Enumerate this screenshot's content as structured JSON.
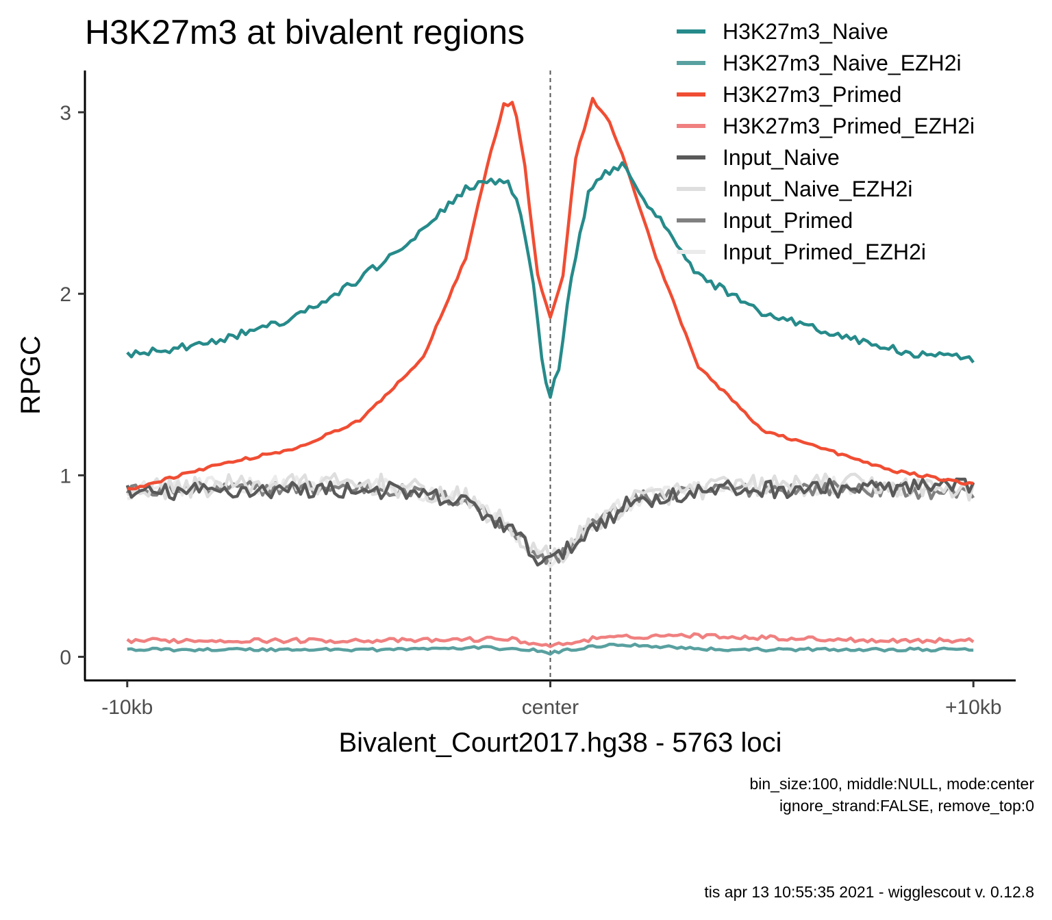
{
  "chart_data": {
    "type": "line",
    "title": "H3K27m3 at bivalent regions",
    "xlabel": "Bivalent_Court2017.hg38 - 5763 loci",
    "ylabel": "RPGC",
    "x_ticks": [
      {
        "value": -10,
        "label": "-10kb"
      },
      {
        "value": 0,
        "label": "center"
      },
      {
        "value": 10,
        "label": "+10kb"
      }
    ],
    "y_ticks": [
      0,
      1,
      2,
      3
    ],
    "xlim": [
      -11,
      11
    ],
    "ylim": [
      -0.13,
      3.23
    ],
    "x_unit": "kb",
    "grid": false,
    "center_line": true,
    "legend_position": "top-right",
    "captions": [
      "bin_size:100, middle:NULL, mode:center",
      "ignore_strand:FALSE, remove_top:0"
    ],
    "footer": "tis apr 13 10:55:35 2021 - wigglescout v. 0.12.8",
    "series": [
      {
        "name": "Input_Primed_EZH2i",
        "color": "#ebebeb",
        "noise": 0.05,
        "points": [
          [
            -10,
            0.92
          ],
          [
            -7,
            0.95
          ],
          [
            -4,
            0.94
          ],
          [
            -2,
            0.86
          ],
          [
            -1,
            0.72
          ],
          [
            -0.3,
            0.56
          ],
          [
            0,
            0.53
          ],
          [
            0.3,
            0.57
          ],
          [
            1,
            0.73
          ],
          [
            2,
            0.87
          ],
          [
            4,
            0.93
          ],
          [
            7,
            0.95
          ],
          [
            10,
            0.91
          ]
        ]
      },
      {
        "name": "Input_Primed",
        "color": "#808080",
        "noise": 0.04,
        "points": [
          [
            -10,
            0.91
          ],
          [
            -7,
            0.93
          ],
          [
            -4,
            0.93
          ],
          [
            -2,
            0.86
          ],
          [
            -1,
            0.72
          ],
          [
            -0.3,
            0.56
          ],
          [
            0,
            0.53
          ],
          [
            0.3,
            0.57
          ],
          [
            1,
            0.73
          ],
          [
            2,
            0.87
          ],
          [
            4,
            0.92
          ],
          [
            7,
            0.93
          ],
          [
            10,
            0.9
          ]
        ]
      },
      {
        "name": "Input_Naive_EZH2i",
        "color": "#dedede",
        "noise": 0.06,
        "points": [
          [
            -10,
            0.92
          ],
          [
            -7,
            0.95
          ],
          [
            -4,
            0.95
          ],
          [
            -2,
            0.87
          ],
          [
            -1,
            0.72
          ],
          [
            -0.3,
            0.56
          ],
          [
            0,
            0.55
          ],
          [
            0.3,
            0.58
          ],
          [
            1,
            0.73
          ],
          [
            2,
            0.87
          ],
          [
            4,
            0.94
          ],
          [
            7,
            0.95
          ],
          [
            10,
            0.92
          ]
        ]
      },
      {
        "name": "Input_Naive",
        "color": "#595959",
        "noise": 0.05,
        "points": [
          [
            -10,
            0.9
          ],
          [
            -7,
            0.92
          ],
          [
            -4,
            0.92
          ],
          [
            -2,
            0.85
          ],
          [
            -1,
            0.71
          ],
          [
            -0.3,
            0.55
          ],
          [
            0,
            0.53
          ],
          [
            0.3,
            0.56
          ],
          [
            1,
            0.72
          ],
          [
            2,
            0.86
          ],
          [
            4,
            0.92
          ],
          [
            7,
            0.93
          ],
          [
            10,
            0.93
          ]
        ]
      },
      {
        "name": "H3K27m3_Primed_EZH2i",
        "color": "#f08080",
        "noise": 0.012,
        "points": [
          [
            -10,
            0.09
          ],
          [
            -8,
            0.09
          ],
          [
            -6,
            0.09
          ],
          [
            -3,
            0.09
          ],
          [
            -1,
            0.1
          ],
          [
            -0.3,
            0.07
          ],
          [
            0,
            0.06
          ],
          [
            0.3,
            0.07
          ],
          [
            1,
            0.1
          ],
          [
            3,
            0.12
          ],
          [
            6,
            0.1
          ],
          [
            8,
            0.09
          ],
          [
            10,
            0.09
          ]
        ]
      },
      {
        "name": "H3K27m3_Primed",
        "color": "#f04d33",
        "noise": 0.008,
        "points": [
          [
            -10,
            0.92
          ],
          [
            -8,
            1.05
          ],
          [
            -6,
            1.15
          ],
          [
            -4.5,
            1.3
          ],
          [
            -3,
            1.65
          ],
          [
            -2,
            2.2
          ],
          [
            -1.5,
            2.7
          ],
          [
            -1.1,
            3.04
          ],
          [
            -0.85,
            3.05
          ],
          [
            -0.6,
            2.7
          ],
          [
            -0.3,
            2.1
          ],
          [
            0,
            1.87
          ],
          [
            0.3,
            2.1
          ],
          [
            0.6,
            2.75
          ],
          [
            1,
            3.07
          ],
          [
            1.4,
            2.95
          ],
          [
            1.8,
            2.7
          ],
          [
            2.5,
            2.2
          ],
          [
            3.5,
            1.6
          ],
          [
            5,
            1.25
          ],
          [
            6,
            1.18
          ],
          [
            8,
            1.03
          ],
          [
            10,
            0.95
          ]
        ]
      },
      {
        "name": "H3K27m3_Naive_EZH2i",
        "color": "#59a0a0",
        "noise": 0.008,
        "points": [
          [
            -10,
            0.04
          ],
          [
            -7,
            0.04
          ],
          [
            -4,
            0.04
          ],
          [
            -1.5,
            0.05
          ],
          [
            -0.5,
            0.04
          ],
          [
            0,
            0.02
          ],
          [
            0.5,
            0.04
          ],
          [
            1.5,
            0.07
          ],
          [
            4,
            0.04
          ],
          [
            7,
            0.04
          ],
          [
            10,
            0.04
          ]
        ]
      },
      {
        "name": "H3K27m3_Naive",
        "color": "#268a8a",
        "noise": 0.022,
        "points": [
          [
            -10,
            1.66
          ],
          [
            -8,
            1.73
          ],
          [
            -6,
            1.87
          ],
          [
            -4.5,
            2.08
          ],
          [
            -3,
            2.35
          ],
          [
            -2,
            2.58
          ],
          [
            -1.6,
            2.62
          ],
          [
            -1.0,
            2.6
          ],
          [
            -0.7,
            2.45
          ],
          [
            -0.4,
            2.05
          ],
          [
            -0.15,
            1.55
          ],
          [
            0,
            1.44
          ],
          [
            0.2,
            1.6
          ],
          [
            0.5,
            2.08
          ],
          [
            0.9,
            2.55
          ],
          [
            1.3,
            2.66
          ],
          [
            1.7,
            2.72
          ],
          [
            2.3,
            2.5
          ],
          [
            3.5,
            2.1
          ],
          [
            5,
            1.9
          ],
          [
            7,
            1.76
          ],
          [
            8.5,
            1.67
          ],
          [
            10,
            1.64
          ]
        ]
      }
    ]
  }
}
